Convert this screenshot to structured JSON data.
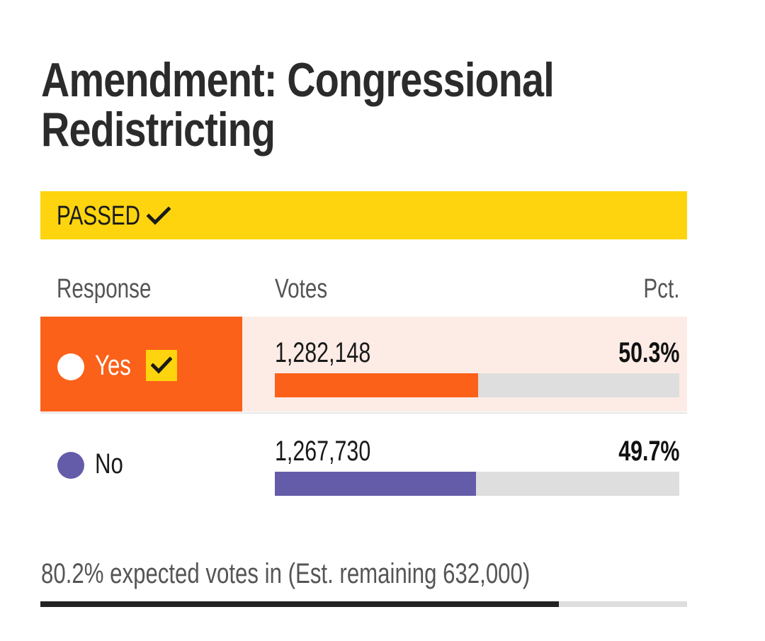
{
  "title": {
    "line1": "Amendment: Congressional",
    "line2": "Redistricting"
  },
  "status": {
    "label": "PASSED",
    "icon": "checkmark-icon",
    "color": "#fdd40e"
  },
  "table": {
    "headers": {
      "response": "Response",
      "votes": "Votes",
      "pct": "Pct."
    },
    "rows": [
      {
        "response": "Yes",
        "votes": "1,282,148",
        "pct": "50.3%",
        "share": 50.3,
        "color": "#fb6119",
        "winner": true,
        "dot_color": "#ffffff"
      },
      {
        "response": "No",
        "votes": "1,267,730",
        "pct": "49.7%",
        "share": 49.7,
        "color": "#645ca9",
        "winner": false,
        "dot_color": "#645ca9"
      }
    ]
  },
  "footer": {
    "text": "80.2% expected votes in (Est. remaining 632,000)",
    "expected_in_pct": 80.2
  }
}
